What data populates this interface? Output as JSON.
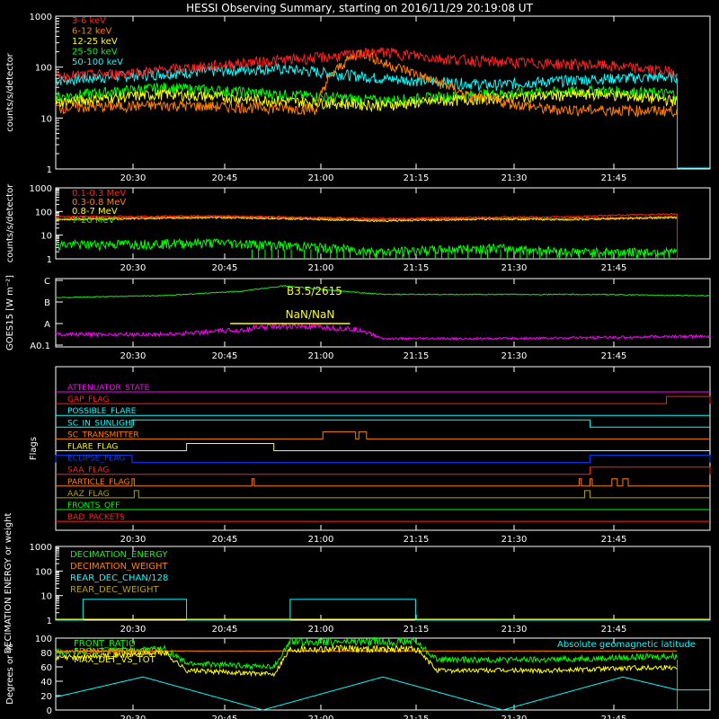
{
  "title": "HESSI Observing Summary, starting on 2016/11/29 20:19:08 UT",
  "time_ticks": [
    "20:30",
    "20:45",
    "21:00",
    "21:15",
    "21:30",
    "21:45"
  ],
  "colors": {
    "red": "#ff2020",
    "orange": "#ff8000",
    "yellow": "#ffff00",
    "green": "#00ff00",
    "cyan": "#00ffff",
    "magenta": "#ff00ff",
    "blue": "#0040ff",
    "olive": "#b8a000",
    "goes": "#20e020"
  },
  "chart_data": [
    {
      "type": "line",
      "id": "panel1",
      "ylabel": "counts/s/detector",
      "yscale": "log",
      "ylim": [
        1,
        1000
      ],
      "yticks": [
        "1",
        "10",
        "100",
        "1000"
      ],
      "x_range_minutes": [
        0,
        57
      ],
      "series": [
        {
          "name": "3-6 keV",
          "color": "#ff2020",
          "x": [
            0,
            8,
            15,
            25,
            30,
            35,
            40,
            50,
            57
          ],
          "y": [
            65,
            80,
            110,
            160,
            200,
            150,
            130,
            110,
            80
          ]
        },
        {
          "name": "6-12 keV",
          "color": "#ff8000",
          "x": [
            0,
            10,
            20,
            24,
            26,
            28,
            30,
            34,
            38,
            45,
            57
          ],
          "y": [
            16,
            18,
            16,
            15,
            100,
            200,
            120,
            60,
            25,
            15,
            14
          ]
        },
        {
          "name": "12-25 keV",
          "color": "#ffff00",
          "x": [
            0,
            10,
            20,
            30,
            40,
            50,
            57
          ],
          "y": [
            20,
            30,
            22,
            18,
            25,
            30,
            22
          ]
        },
        {
          "name": "25-50 keV",
          "color": "#00ff00",
          "x": [
            0,
            10,
            20,
            30,
            40,
            50,
            57
          ],
          "y": [
            26,
            40,
            30,
            22,
            30,
            35,
            30
          ]
        },
        {
          "name": "50-100 keV",
          "color": "#00ffff",
          "x": [
            0,
            10,
            20,
            30,
            40,
            50,
            57
          ],
          "y": [
            55,
            75,
            95,
            60,
            45,
            60,
            65
          ]
        }
      ]
    },
    {
      "type": "line",
      "id": "panel2",
      "ylabel": "counts/s/detector",
      "yscale": "log",
      "ylim": [
        1,
        1000
      ],
      "yticks": [
        "1",
        "10",
        "100",
        "1000"
      ],
      "series": [
        {
          "name": "0.1-0.3 MeV",
          "color": "#ff2020",
          "x": [
            0,
            15,
            25,
            30,
            40,
            47,
            57
          ],
          "y": [
            60,
            65,
            55,
            50,
            58,
            60,
            80
          ]
        },
        {
          "name": "0.3-0.8 MeV",
          "color": "#ff8000",
          "x": [
            0,
            15,
            25,
            30,
            40,
            47,
            57
          ],
          "y": [
            50,
            60,
            50,
            45,
            52,
            50,
            60
          ]
        },
        {
          "name": "0.8-7 MeV",
          "color": "#ffff00",
          "x": [
            0,
            15,
            25,
            30,
            40,
            47,
            57
          ],
          "y": [
            45,
            55,
            45,
            40,
            48,
            45,
            55
          ]
        },
        {
          "name": "7-20 MeV",
          "color": "#00ff00",
          "x": [
            0,
            15,
            25,
            30,
            40,
            47,
            57
          ],
          "y": [
            4,
            5,
            3,
            2,
            3,
            2,
            2
          ]
        }
      ]
    },
    {
      "type": "line",
      "id": "panel3",
      "ylabel": "GOES15 [W m⁻²]",
      "yticks": [
        "A0.1",
        "A",
        "B",
        "C"
      ],
      "annotations": [
        "B3.5/2615",
        "NaN/NaN"
      ],
      "series": [
        {
          "name": "GOES long",
          "color": "#20e020",
          "x": [
            0,
            10,
            17,
            21,
            25,
            30,
            40,
            50,
            57
          ],
          "y": [
            2.2,
            2.3,
            2.5,
            2.75,
            2.55,
            2.35,
            2.35,
            2.35,
            2.3
          ]
        },
        {
          "name": "GOES short",
          "color": "#ff00ff",
          "x": [
            0,
            10,
            17,
            20,
            25,
            28,
            30,
            40,
            50,
            57
          ],
          "y": [
            0.5,
            0.5,
            0.7,
            0.9,
            0.8,
            0.7,
            0.3,
            0.3,
            0.35,
            0.4
          ]
        }
      ]
    },
    {
      "type": "line",
      "id": "panel4",
      "ylabel": "Flags",
      "flags": [
        {
          "name": "ATTENUATOR_STATE",
          "color": "#ff00ff",
          "on": []
        },
        {
          "name": "GAP_FLAG",
          "color": "#ff2020",
          "on": [
            [
              56,
              60
            ]
          ]
        },
        {
          "name": "POSSIBLE_FLARE",
          "color": "#00ffff",
          "on": []
        },
        {
          "name": "SC_IN_SUNLIGHT",
          "color": "#00ffff",
          "on": [
            [
              7,
              49
            ]
          ]
        },
        {
          "name": "SC_TRANSMITTER",
          "color": "#ff8000",
          "on": [
            [
              24.5,
              27.5
            ],
            [
              27.8,
              28.5
            ]
          ]
        },
        {
          "name": "FLARE_FLAG",
          "color": "#ffff00",
          "on": [
            [
              12,
              20
            ]
          ]
        },
        {
          "name": "ECLIPSE_FLAG",
          "color": "#0040ff",
          "on": [
            [
              0,
              7
            ],
            [
              49,
              60
            ]
          ]
        },
        {
          "name": "SAA_FLAG",
          "color": "#ff2020",
          "on": [
            [
              49,
              60
            ]
          ]
        },
        {
          "name": "PARTICLE_FLAG",
          "color": "#ff8000",
          "on": [
            [
              7,
              7.2
            ],
            [
              18,
              18.2
            ],
            [
              48,
              48.2
            ],
            [
              49,
              49.2
            ],
            [
              51,
              51.5
            ],
            [
              52,
              52.5
            ]
          ]
        },
        {
          "name": "AAZ_FLAG",
          "color": "#b8a000",
          "on": [
            [
              7.2,
              7.6
            ],
            [
              48.5,
              49
            ]
          ]
        },
        {
          "name": "FRONTS_OFF",
          "color": "#00ff00",
          "on": []
        },
        {
          "name": "BAD_PACKETS",
          "color": "#ff2020",
          "on": []
        }
      ]
    },
    {
      "type": "line",
      "id": "panel5",
      "ylabel": "DECIMATION ENERGY or weight",
      "yscale": "log",
      "ylim": [
        1,
        1000
      ],
      "yticks": [
        "1",
        "10",
        "100",
        "1000"
      ],
      "series": [
        {
          "name": "DECIMATION_ENERGY",
          "color": "#00ff00",
          "steps": []
        },
        {
          "name": "DECIMATION_WEIGHT",
          "color": "#ff8000",
          "steps": []
        },
        {
          "name": "REAR_DEC_CHAN/128",
          "color": "#00ffff",
          "steps": [
            [
              0,
              1
            ],
            [
              2.5,
              7
            ],
            [
              12,
              1
            ],
            [
              21.5,
              7
            ],
            [
              33,
              1
            ],
            [
              57,
              1
            ]
          ]
        },
        {
          "name": "REAR_DEC_WEIGHT",
          "color": "#b8a000",
          "steps": []
        }
      ]
    },
    {
      "type": "line",
      "id": "panel6",
      "ylabel": "Degrees or %",
      "ylim": [
        0,
        100
      ],
      "yticks": [
        "0",
        "20",
        "40",
        "60",
        "80",
        "100"
      ],
      "annotations": [
        "Absolute geomagnetic latitude"
      ],
      "series": [
        {
          "name": "FRONT_RATIO",
          "color": "#00ff00",
          "x": [
            0,
            10,
            12,
            20,
            21.5,
            33,
            35,
            45,
            57
          ],
          "y": [
            80,
            85,
            65,
            60,
            95,
            95,
            70,
            70,
            75
          ]
        },
        {
          "name": "FRONT_RATIO_1225",
          "color": "#ff8000",
          "x": [
            0,
            57
          ],
          "y": [
            82,
            82
          ]
        },
        {
          "name": "MAX_DET_VS_TOT",
          "color": "#ffff00",
          "x": [
            0,
            10,
            12,
            20,
            21.5,
            33,
            35,
            45,
            57
          ],
          "y": [
            72,
            80,
            55,
            50,
            85,
            85,
            55,
            55,
            60
          ]
        },
        {
          "name": "Absolute geomagnetic latitude",
          "color": "#00ffff",
          "x": [
            0,
            8,
            19,
            30,
            41,
            52,
            57
          ],
          "y": [
            18,
            46,
            0,
            46,
            0,
            46,
            28
          ]
        }
      ]
    }
  ]
}
